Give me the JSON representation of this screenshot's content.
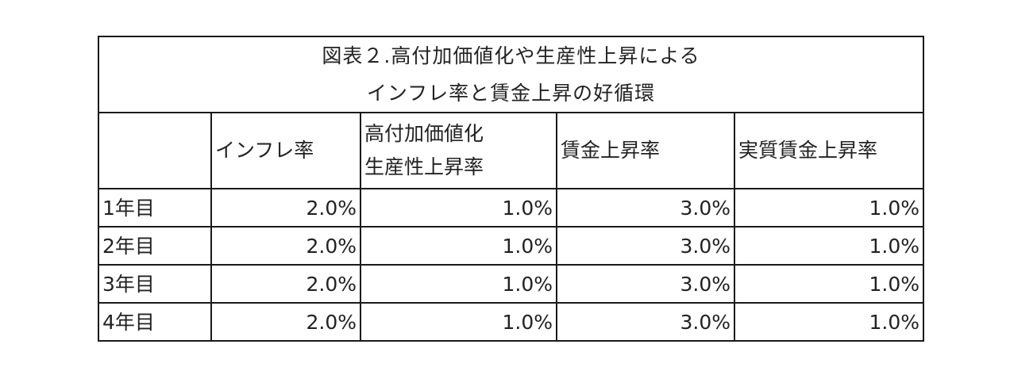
{
  "table": {
    "title_lines": [
      "図表２.高付加価値化や生産性上昇による",
      "インフレ率と賃金上昇の好循環"
    ],
    "header": {
      "corner": "",
      "columns": [
        [
          "インフレ率"
        ],
        [
          "高付加価値化",
          "生産性上昇率"
        ],
        [
          "賃金上昇率"
        ],
        [
          "実質賃金上昇率"
        ]
      ]
    },
    "rows": [
      {
        "label": "1年目",
        "values": [
          "2.0%",
          "1.0%",
          "3.0%",
          "1.0%"
        ]
      },
      {
        "label": "2年目",
        "values": [
          "2.0%",
          "1.0%",
          "3.0%",
          "1.0%"
        ]
      },
      {
        "label": "3年目",
        "values": [
          "2.0%",
          "1.0%",
          "3.0%",
          "1.0%"
        ]
      },
      {
        "label": "4年目",
        "values": [
          "2.0%",
          "1.0%",
          "3.0%",
          "1.0%"
        ]
      }
    ]
  }
}
